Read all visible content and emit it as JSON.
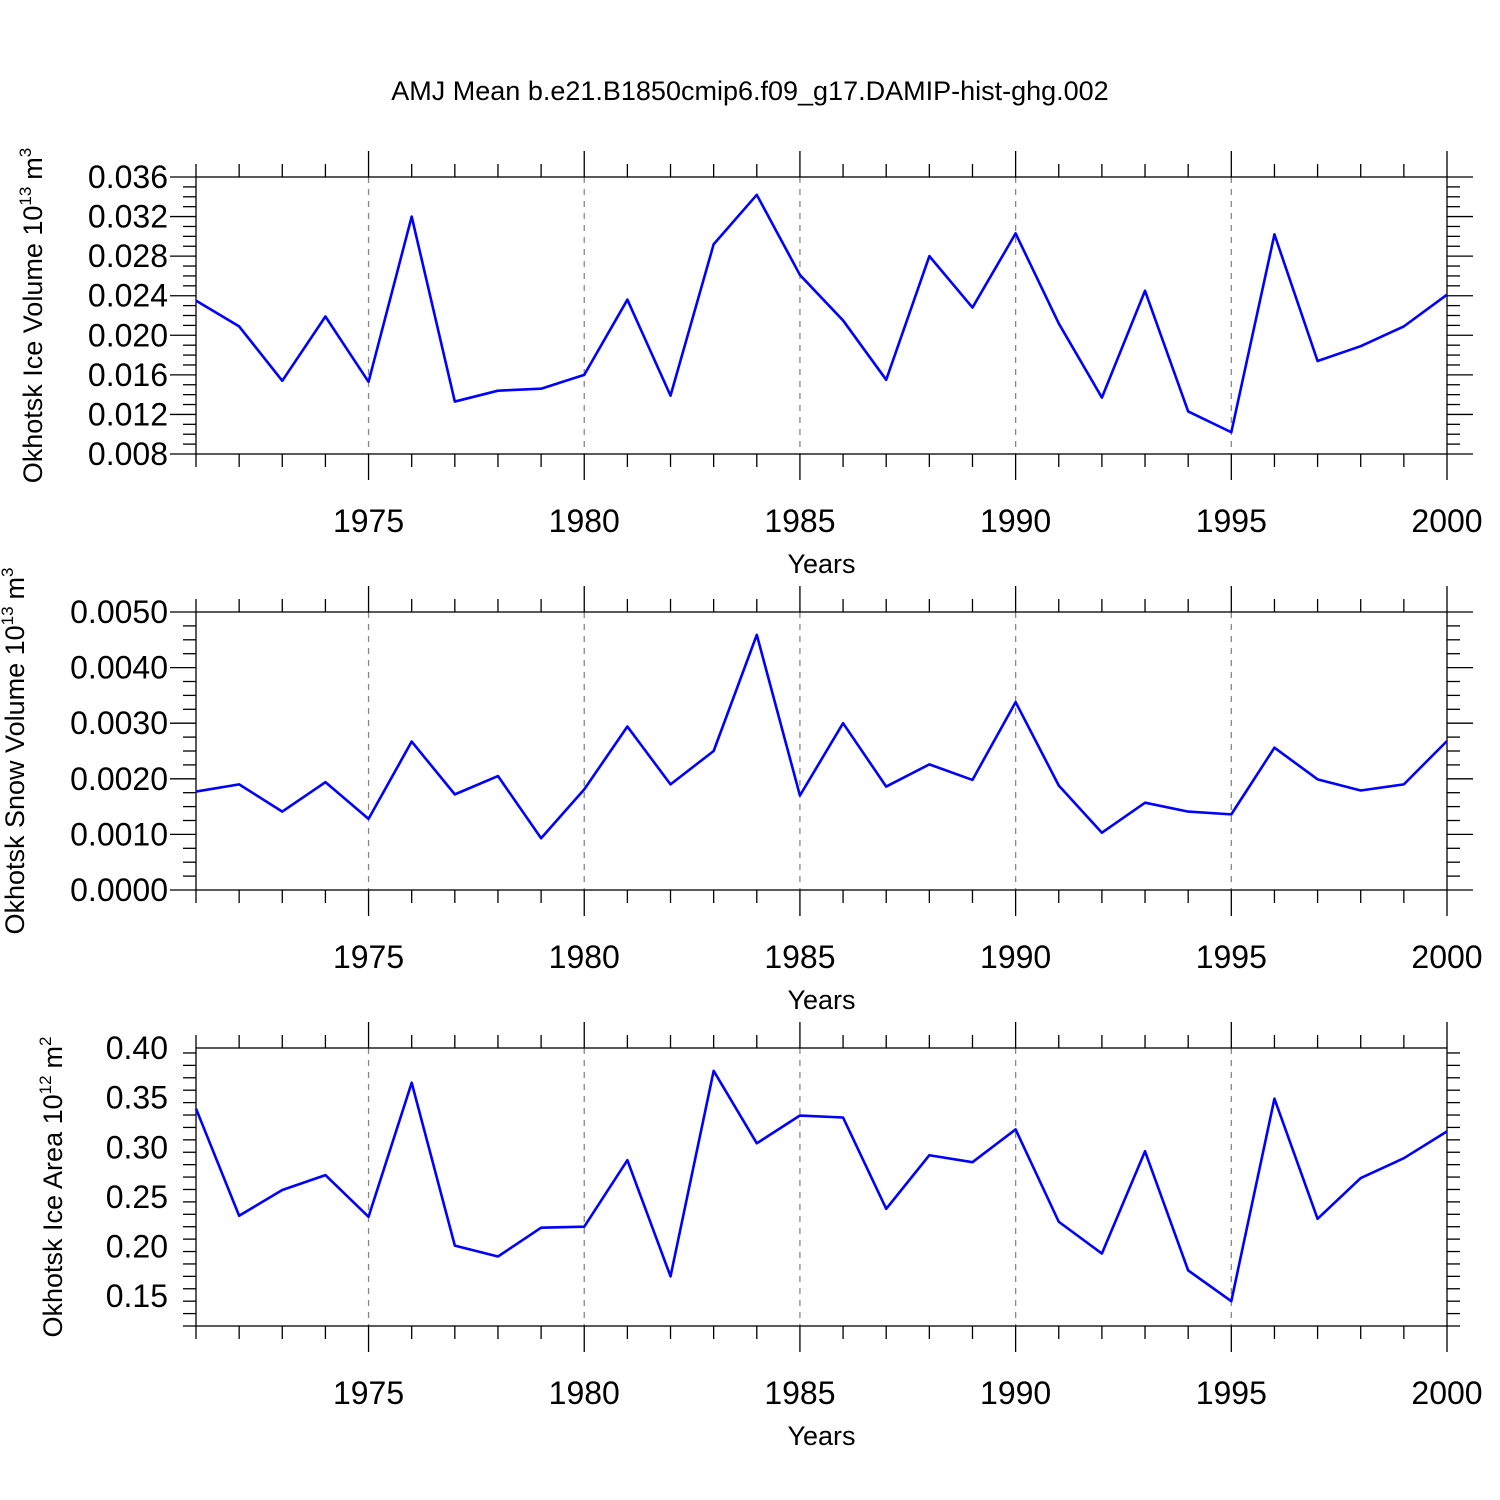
{
  "chart_data": [
    {
      "type": "line",
      "title": "AMJ Mean b.e21.B1850cmip6.f09_g17.DAMIP-hist-ghg.002",
      "xlabel": "Years",
      "ylabel": "Okhotsk Ice Volume 10",
      "ylabel_sup": "13",
      "ylabel_unit": "m",
      "ylabel_unit_sup": "3",
      "x": [
        1971,
        1972,
        1973,
        1974,
        1975,
        1976,
        1977,
        1978,
        1979,
        1980,
        1981,
        1982,
        1983,
        1984,
        1985,
        1986,
        1987,
        1988,
        1989,
        1990,
        1991,
        1992,
        1993,
        1994,
        1995,
        1996,
        1997,
        1998,
        1999,
        2000
      ],
      "series": [
        {
          "values": [
            0.0235,
            0.0209,
            0.0154,
            0.0219,
            0.0153,
            0.032,
            0.0133,
            0.0144,
            0.0146,
            0.016,
            0.0236,
            0.0139,
            0.0292,
            0.0342,
            0.0261,
            0.0215,
            0.0155,
            0.028,
            0.0228,
            0.0303,
            0.0212,
            0.0137,
            0.0245,
            0.0123,
            0.0102,
            0.0302,
            0.0174,
            0.0189,
            0.0209,
            0.0241
          ],
          "color": "#0000ff"
        }
      ],
      "xlim": [
        1971,
        2000
      ],
      "ylim": [
        0.008,
        0.036
      ],
      "x_ticks": [
        1975,
        1980,
        1985,
        1990,
        1995,
        2000
      ],
      "y_ticks": [
        "0.008",
        "0.012",
        "0.016",
        "0.020",
        "0.024",
        "0.028",
        "0.032",
        "0.036"
      ],
      "grid": "vertical dashed at major x ticks"
    },
    {
      "type": "line",
      "title": "",
      "xlabel": "Years",
      "ylabel": "Okhotsk Snow Volume 10",
      "ylabel_sup": "13",
      "ylabel_unit": "m",
      "ylabel_unit_sup": "3",
      "x": [
        1971,
        1972,
        1973,
        1974,
        1975,
        1976,
        1977,
        1978,
        1979,
        1980,
        1981,
        1982,
        1983,
        1984,
        1985,
        1986,
        1987,
        1988,
        1989,
        1990,
        1991,
        1992,
        1993,
        1994,
        1995,
        1996,
        1997,
        1998,
        1999,
        2000
      ],
      "series": [
        {
          "values": [
            0.00177,
            0.0019,
            0.00141,
            0.00194,
            0.00128,
            0.00267,
            0.00172,
            0.00205,
            0.00093,
            0.00181,
            0.00294,
            0.0019,
            0.0025,
            0.00459,
            0.0017,
            0.003,
            0.00186,
            0.00226,
            0.00198,
            0.00338,
            0.00188,
            0.00103,
            0.00157,
            0.00141,
            0.00136,
            0.00256,
            0.00199,
            0.00179,
            0.0019,
            0.00268
          ],
          "color": "#0000ff"
        }
      ],
      "xlim": [
        1971,
        2000
      ],
      "ylim": [
        0.0,
        0.005
      ],
      "x_ticks": [
        1975,
        1980,
        1985,
        1990,
        1995,
        2000
      ],
      "y_ticks": [
        "0.0000",
        "0.0010",
        "0.0020",
        "0.0030",
        "0.0040",
        "0.0050"
      ],
      "grid": "vertical dashed at major x ticks"
    },
    {
      "type": "line",
      "title": "",
      "xlabel": "Years",
      "ylabel": "Okhotsk Ice Area 10",
      "ylabel_sup": "12",
      "ylabel_unit": "m",
      "ylabel_unit_sup": "2",
      "x": [
        1971,
        1972,
        1973,
        1974,
        1975,
        1976,
        1977,
        1978,
        1979,
        1980,
        1981,
        1982,
        1983,
        1984,
        1985,
        1986,
        1987,
        1988,
        1989,
        1990,
        1991,
        1992,
        1993,
        1994,
        1995,
        1996,
        1997,
        1998,
        1999,
        2000
      ],
      "series": [
        {
          "values": [
            0.339,
            0.231,
            0.257,
            0.272,
            0.23,
            0.365,
            0.201,
            0.19,
            0.219,
            0.22,
            0.287,
            0.17,
            0.377,
            0.304,
            0.332,
            0.33,
            0.238,
            0.292,
            0.285,
            0.318,
            0.225,
            0.193,
            0.296,
            0.176,
            0.145,
            0.349,
            0.228,
            0.269,
            0.289,
            0.316
          ],
          "color": "#0000ff"
        }
      ],
      "xlim": [
        1971,
        2000
      ],
      "ylim": [
        0.12,
        0.4
      ],
      "x_ticks": [
        1975,
        1980,
        1985,
        1990,
        1995,
        2000
      ],
      "y_ticks": [
        "0.15",
        "0.20",
        "0.25",
        "0.30",
        "0.35",
        "0.40"
      ],
      "grid": "vertical dashed at major x ticks"
    }
  ]
}
